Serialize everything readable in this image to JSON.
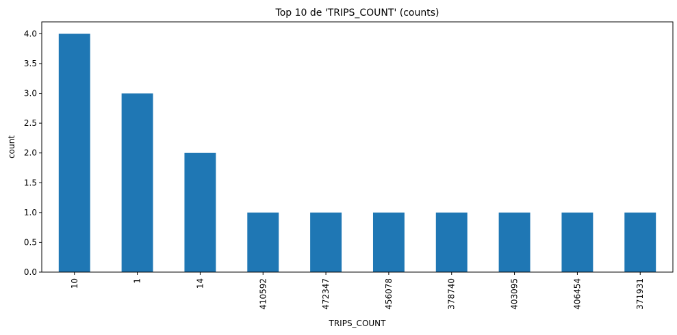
{
  "chart_data": {
    "type": "bar",
    "title": "Top 10 de 'TRIPS_COUNT' (counts)",
    "xlabel": "TRIPS_COUNT",
    "ylabel": "count",
    "categories": [
      "10",
      "1",
      "14",
      "410592",
      "472347",
      "456078",
      "378740",
      "403095",
      "406454",
      "371931"
    ],
    "values": [
      4,
      3,
      2,
      1,
      1,
      1,
      1,
      1,
      1,
      1
    ],
    "ylim": [
      0,
      4.2
    ],
    "yticks": [
      "0.0",
      "0.5",
      "1.0",
      "1.5",
      "2.0",
      "2.5",
      "3.0",
      "3.5",
      "4.0"
    ],
    "bar_color": "#1f77b4",
    "grid": false,
    "legend": false
  }
}
